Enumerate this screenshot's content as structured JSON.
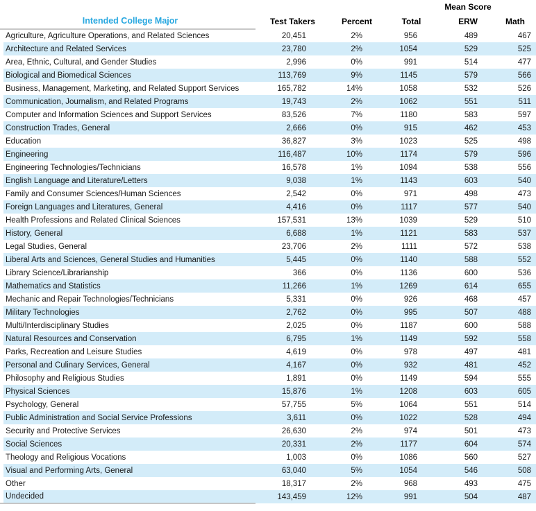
{
  "colors": {
    "title_blue": "#29a8e0",
    "stripe_blue": "#d3ecf9",
    "rule_gray": "#c8c8c8"
  },
  "chart_data": {
    "type": "table",
    "group_header": "Mean Score",
    "columns": [
      "Intended College Major",
      "Test Takers",
      "Percent",
      "Total",
      "ERW",
      "Math"
    ],
    "rows": [
      [
        "Agriculture, Agriculture Operations, and Related Sciences",
        "20,451",
        "2%",
        "956",
        "489",
        "467"
      ],
      [
        "Architecture and Related Services",
        "23,780",
        "2%",
        "1054",
        "529",
        "525"
      ],
      [
        "Area, Ethnic, Cultural, and Gender Studies",
        "2,996",
        "0%",
        "991",
        "514",
        "477"
      ],
      [
        "Biological and Biomedical Sciences",
        "113,769",
        "9%",
        "1145",
        "579",
        "566"
      ],
      [
        "Business, Management, Marketing, and Related Support Services",
        "165,782",
        "14%",
        "1058",
        "532",
        "526"
      ],
      [
        "Communication, Journalism, and Related Programs",
        "19,743",
        "2%",
        "1062",
        "551",
        "511"
      ],
      [
        "Computer and Information Sciences and Support Services",
        "83,526",
        "7%",
        "1180",
        "583",
        "597"
      ],
      [
        "Construction Trades, General",
        "2,666",
        "0%",
        "915",
        "462",
        "453"
      ],
      [
        "Education",
        "36,827",
        "3%",
        "1023",
        "525",
        "498"
      ],
      [
        "Engineering",
        "116,487",
        "10%",
        "1174",
        "579",
        "596"
      ],
      [
        "Engineering Technologies/Technicians",
        "16,578",
        "1%",
        "1094",
        "538",
        "556"
      ],
      [
        "English Language and Literature/Letters",
        "9,038",
        "1%",
        "1143",
        "603",
        "540"
      ],
      [
        "Family and Consumer Sciences/Human Sciences",
        "2,542",
        "0%",
        "971",
        "498",
        "473"
      ],
      [
        "Foreign Languages and Literatures, General",
        "4,416",
        "0%",
        "1117",
        "577",
        "540"
      ],
      [
        "Health Professions and Related Clinical Sciences",
        "157,531",
        "13%",
        "1039",
        "529",
        "510"
      ],
      [
        "History, General",
        "6,688",
        "1%",
        "1121",
        "583",
        "537"
      ],
      [
        "Legal Studies, General",
        "23,706",
        "2%",
        "1111",
        "572",
        "538"
      ],
      [
        "Liberal Arts and Sciences, General Studies and Humanities",
        "5,445",
        "0%",
        "1140",
        "588",
        "552"
      ],
      [
        "Library Science/Librarianship",
        "366",
        "0%",
        "1136",
        "600",
        "536"
      ],
      [
        "Mathematics and Statistics",
        "11,266",
        "1%",
        "1269",
        "614",
        "655"
      ],
      [
        "Mechanic and Repair Technologies/Technicians",
        "5,331",
        "0%",
        "926",
        "468",
        "457"
      ],
      [
        "Military Technologies",
        "2,762",
        "0%",
        "995",
        "507",
        "488"
      ],
      [
        "Multi/Interdisciplinary Studies",
        "2,025",
        "0%",
        "1187",
        "600",
        "588"
      ],
      [
        "Natural Resources and Conservation",
        "6,795",
        "1%",
        "1149",
        "592",
        "558"
      ],
      [
        "Parks, Recreation and Leisure Studies",
        "4,619",
        "0%",
        "978",
        "497",
        "481"
      ],
      [
        "Personal and Culinary Services, General",
        "4,167",
        "0%",
        "932",
        "481",
        "452"
      ],
      [
        "Philosophy and Religious Studies",
        "1,891",
        "0%",
        "1149",
        "594",
        "555"
      ],
      [
        "Physical Sciences",
        "15,876",
        "1%",
        "1208",
        "603",
        "605"
      ],
      [
        "Psychology, General",
        "57,755",
        "5%",
        "1064",
        "551",
        "514"
      ],
      [
        "Public Administration and Social Service Professions",
        "3,611",
        "0%",
        "1022",
        "528",
        "494"
      ],
      [
        "Security and Protective Services",
        "26,630",
        "2%",
        "974",
        "501",
        "473"
      ],
      [
        "Social Sciences",
        "20,331",
        "2%",
        "1177",
        "604",
        "574"
      ],
      [
        "Theology and Religious Vocations",
        "1,003",
        "0%",
        "1086",
        "560",
        "527"
      ],
      [
        "Visual and Performing Arts, General",
        "63,040",
        "5%",
        "1054",
        "546",
        "508"
      ],
      [
        "Other",
        "18,317",
        "2%",
        "968",
        "493",
        "475"
      ],
      [
        "Undecided",
        "143,459",
        "12%",
        "991",
        "504",
        "487"
      ]
    ]
  }
}
